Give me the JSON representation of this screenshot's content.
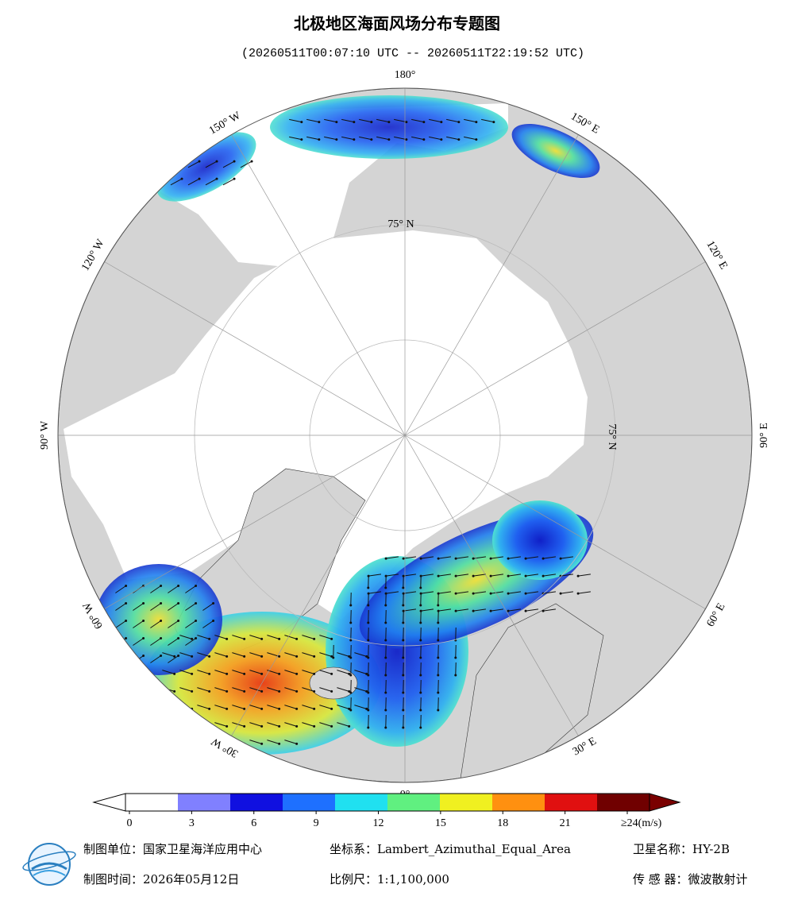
{
  "title": "北极地区海面风场分布专题图",
  "subtitle": "(20260511T00:07:10 UTC -- 20260511T22:19:52 UTC)",
  "map": {
    "longitude_labels": [
      "0°",
      "30° E",
      "60° E",
      "90° E",
      "120° E",
      "150° E",
      "180°",
      "150° W",
      "120° W",
      "90° W",
      "60° W",
      "30° W"
    ],
    "latitude_labels": [
      "75° N",
      "75° N"
    ]
  },
  "colorbar": {
    "range": [
      0,
      24
    ],
    "ticks": [
      0,
      3,
      6,
      9,
      12,
      15,
      18,
      21,
      {
        "value": 24,
        "label": "≥24(m/s)"
      }
    ],
    "colors": [
      "#ffffff",
      "#8080ff",
      "#1010e0",
      "#1e70ff",
      "#20e0f0",
      "#60f080",
      "#f0f020",
      "#ff9010",
      "#e01010",
      "#700000"
    ],
    "over_color": "#7a0000"
  },
  "footer": {
    "producer": "制图单位：国家卫星海洋应用中心",
    "projection": "坐标系：Lambert_Azimuthal_Equal_Area",
    "satellite": "卫星名称：HY-2B",
    "date": "制图时间：2026年05月12日",
    "scale": "比例尺：1:1,100,000",
    "sensor": "传 感 器：微波散射计"
  }
}
